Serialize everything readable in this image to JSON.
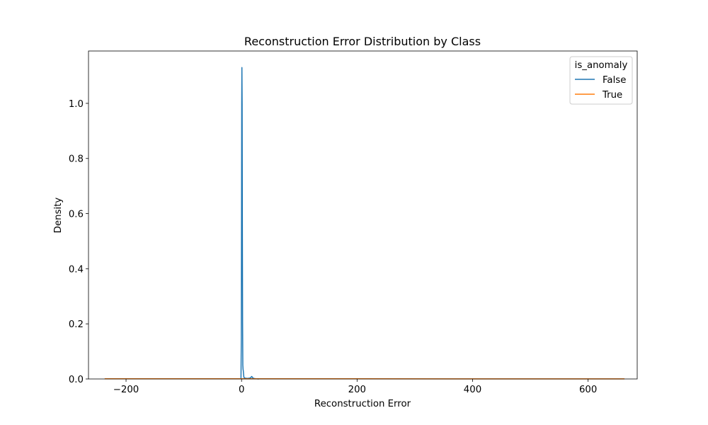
{
  "chart_data": {
    "type": "line",
    "title": "Reconstruction Error Distribution by Class",
    "xlabel": "Reconstruction Error",
    "ylabel": "Density",
    "xlim": [
      -265,
      685
    ],
    "ylim": [
      0,
      1.19
    ],
    "xticks": [
      -200,
      0,
      200,
      400,
      600
    ],
    "yticks": [
      0.0,
      0.2,
      0.4,
      0.6,
      0.8,
      1.0
    ],
    "grid": false,
    "legend": {
      "title": "is_anomaly",
      "placement": "top-right"
    },
    "series": [
      {
        "name": "False",
        "color": "#1f77b4",
        "x": [
          -1.0,
          -0.4,
          0.0,
          0.3,
          0.6,
          1.0,
          1.4,
          1.8,
          2.2,
          2.6,
          3.0,
          4.0,
          6.0,
          10.0,
          14.0,
          16.0,
          17.5,
          18.5,
          19.5,
          21.0,
          24.0,
          30.0
        ],
        "y": [
          0.0,
          0.15,
          0.6,
          1.0,
          1.13,
          1.0,
          0.55,
          0.2,
          0.05,
          0.035,
          0.03,
          0.006,
          0.003,
          0.002,
          0.003,
          0.005,
          0.009,
          0.007,
          0.004,
          0.002,
          0.001,
          0.0
        ]
      },
      {
        "name": "True",
        "color": "#ff7f0e",
        "x": [
          -237,
          0,
          200,
          400,
          663
        ],
        "y": [
          0.0005,
          0.0008,
          0.0006,
          0.0004,
          0.0002
        ]
      }
    ]
  }
}
